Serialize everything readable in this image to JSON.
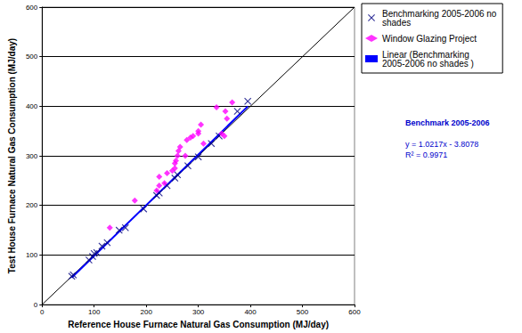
{
  "chart_data": {
    "type": "scatter",
    "x_label": "Reference House Furnace Natural Gas Consumption (MJ/day)",
    "y_label": "Test House Furnace Natural Gas Consumption (MJ/day)",
    "xlim": [
      0,
      600
    ],
    "xticks": [
      0,
      100,
      200,
      300,
      400,
      500,
      600
    ],
    "ylim": [
      0,
      600
    ],
    "yticks": [
      0,
      100,
      200,
      300,
      400,
      500,
      600
    ],
    "grid": true,
    "legend": "right",
    "annotations": [
      "Benchmark 2005-2006",
      "y = 1.0217x - 3.8078",
      "R² = 0.9971"
    ],
    "series": [
      {
        "name": "Benchmarking 2005-2006 no shades",
        "type": "scatter",
        "color": "#000080",
        "marker": "x",
        "x": [
          57,
          60,
          90,
          97,
          100,
          105,
          115,
          125,
          148,
          160,
          195,
          220,
          225,
          240,
          255,
          260,
          280,
          300,
          325,
          340,
          375,
          395
        ],
        "values": [
          57,
          60,
          90,
          97,
          103,
          105,
          118,
          125,
          150,
          155,
          193,
          220,
          225,
          240,
          255,
          262,
          280,
          298,
          325,
          340,
          390,
          410
        ]
      },
      {
        "name": "Window Glazing Project",
        "type": "scatter",
        "color": "#ff00ff",
        "marker": "diamond",
        "x": [
          130,
          178,
          220,
          225,
          225,
          235,
          240,
          250,
          255,
          255,
          257,
          260,
          262,
          265,
          275,
          278,
          285,
          290,
          300,
          300,
          305,
          310,
          335,
          345,
          350,
          352,
          355,
          365
        ],
        "values": [
          155,
          210,
          230,
          240,
          258,
          245,
          265,
          270,
          275,
          285,
          290,
          300,
          310,
          318,
          300,
          332,
          337,
          340,
          345,
          350,
          363,
          325,
          398,
          345,
          340,
          390,
          375,
          408
        ]
      },
      {
        "name": "Linear (Benchmarking 2005-2006 no shades )",
        "type": "line",
        "color": "#0000ff",
        "line_style": "solid",
        "x": [
          57,
          395
        ],
        "values": [
          54.4,
          399.8
        ]
      },
      {
        "type": "line",
        "color": "#000000",
        "line_style": "solid",
        "x": [
          0,
          600
        ],
        "values": [
          0,
          600
        ]
      }
    ]
  }
}
